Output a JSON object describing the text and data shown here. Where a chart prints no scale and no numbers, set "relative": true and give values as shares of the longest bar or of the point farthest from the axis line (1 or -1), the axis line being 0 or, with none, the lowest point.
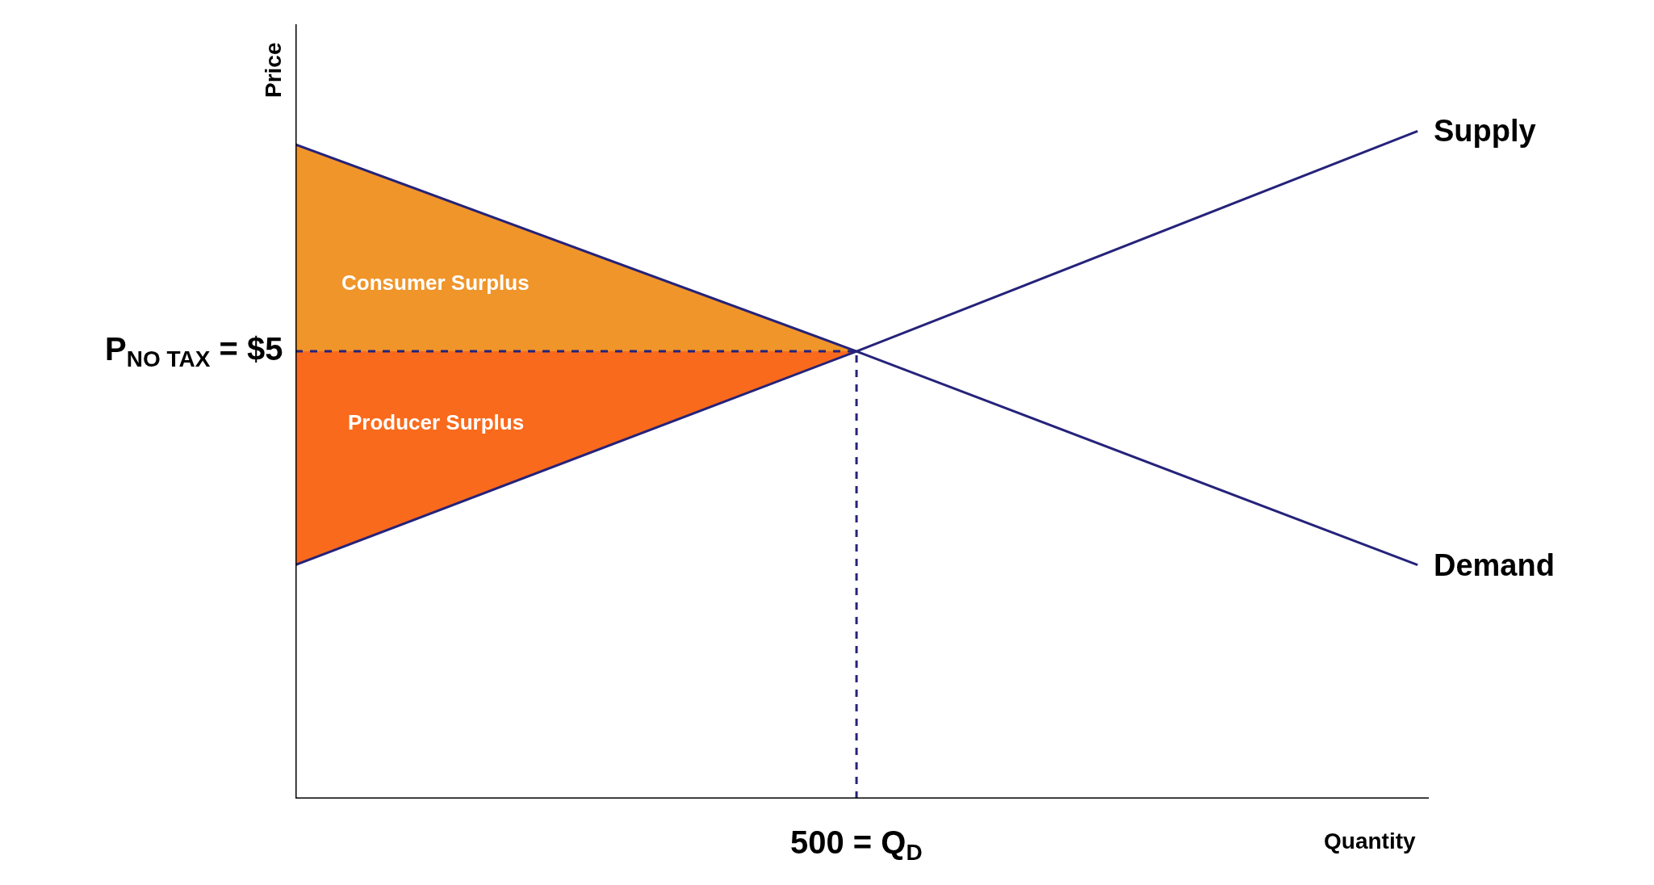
{
  "chart_data": {
    "type": "line",
    "relative": true,
    "xlabel": "Quantity",
    "ylabel": "Price",
    "categories": [
      null,
      null,
      null
    ],
    "legend": false,
    "marker": "none",
    "series": [
      {
        "name": "Demand",
        "color": "#25237a",
        "values": [
          0.98,
          0.67,
          0.35
        ]
      },
      {
        "name": "Supply",
        "color": "#25237a",
        "values": [
          0.35,
          0.67,
          1.0
        ]
      },
      {
        "name": "Consumer Surplus",
        "type": "area",
        "color": "#f0952a",
        "values": [
          0.98,
          0.67,
          null
        ]
      },
      {
        "name": "Producer Surplus",
        "type": "area",
        "color": "#fa6a1c",
        "values": [
          0.35,
          0.67,
          null
        ]
      }
    ],
    "ref_lines": [
      {
        "axis": "y",
        "value": 0.67,
        "line_style": "dashed",
        "color": "#25237a"
      }
    ],
    "annotations": [
      "P$_{NO TAX}$ = $5",
      "500 = Q$_{D}$"
    ]
  }
}
